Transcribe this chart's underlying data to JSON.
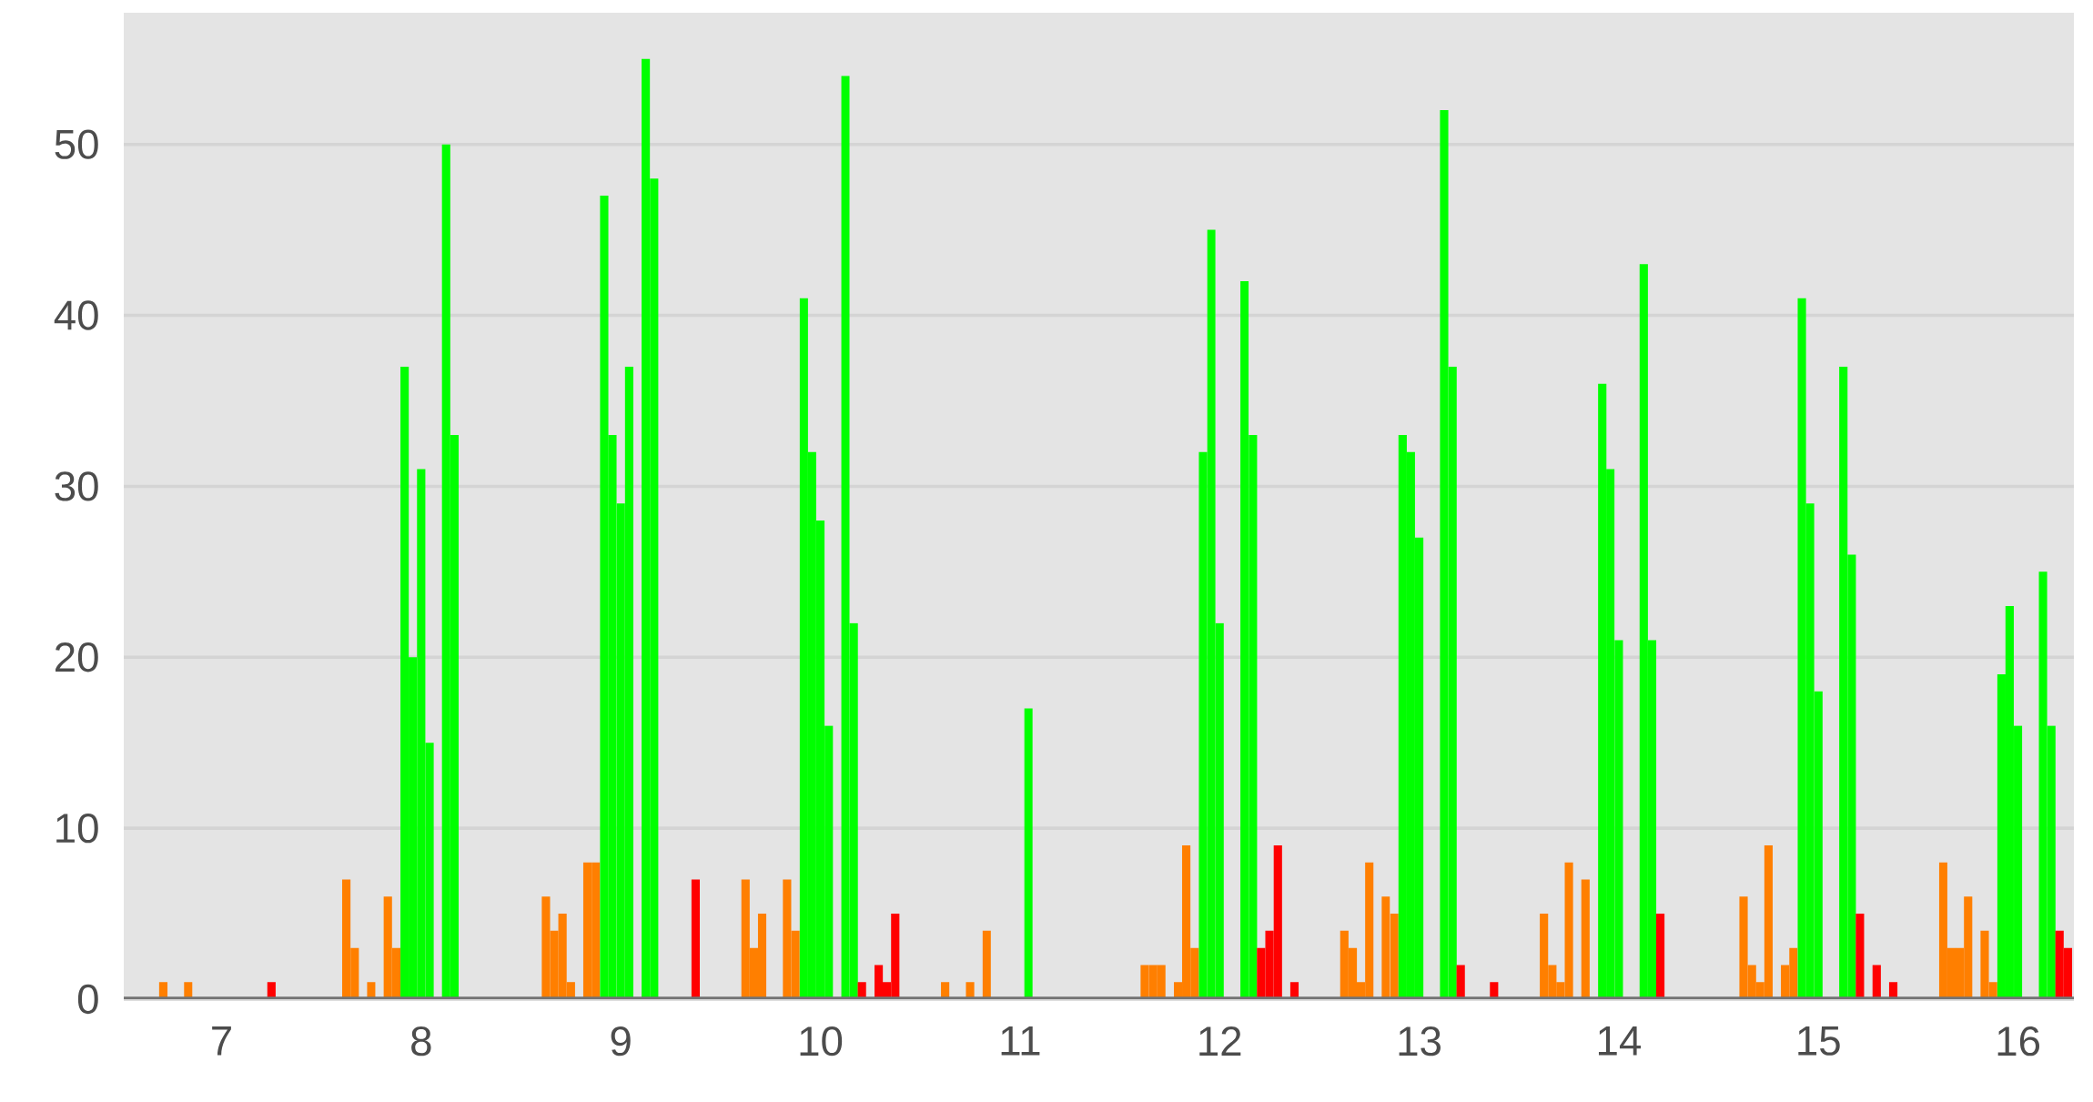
{
  "chart_data": {
    "type": "bar",
    "xlim": [
      6.51,
      16.28
    ],
    "ylim": [
      0,
      57.7
    ],
    "xticks": [
      7,
      8,
      9,
      10,
      11,
      12,
      13,
      14,
      15,
      16
    ],
    "yticks": [
      0,
      10,
      20,
      30,
      40,
      50
    ],
    "grid": "y",
    "x": [
      6.708,
      6.833,
      7.25,
      7.625,
      7.667,
      7.75,
      7.833,
      7.875,
      7.917,
      7.958,
      8.0,
      8.042,
      8.125,
      8.167,
      8.625,
      8.667,
      8.708,
      8.75,
      8.833,
      8.875,
      8.917,
      8.958,
      9.0,
      9.042,
      9.125,
      9.167,
      9.375,
      9.625,
      9.667,
      9.708,
      9.833,
      9.875,
      9.917,
      9.958,
      10.0,
      10.042,
      10.125,
      10.167,
      10.208,
      10.292,
      10.333,
      10.375,
      10.625,
      10.75,
      10.833,
      11.042,
      11.625,
      11.667,
      11.708,
      11.792,
      11.833,
      11.875,
      11.917,
      11.958,
      12.0,
      12.125,
      12.167,
      12.208,
      12.25,
      12.292,
      12.375,
      12.625,
      12.667,
      12.708,
      12.75,
      12.833,
      12.875,
      12.917,
      12.958,
      13.0,
      13.125,
      13.167,
      13.208,
      13.375,
      13.625,
      13.667,
      13.708,
      13.75,
      13.833,
      13.917,
      13.958,
      14.0,
      14.125,
      14.167,
      14.208,
      14.625,
      14.667,
      14.708,
      14.75,
      14.833,
      14.875,
      14.917,
      14.958,
      15.0,
      15.125,
      15.167,
      15.208,
      15.292,
      15.375,
      15.625,
      15.667,
      15.708,
      15.75,
      15.833,
      15.875,
      15.917,
      15.958,
      16.0,
      16.125,
      16.167,
      16.208,
      16.25
    ],
    "values": [
      1,
      1,
      1,
      7,
      3,
      1,
      6,
      3,
      37,
      20,
      31,
      15,
      50,
      33,
      6,
      4,
      5,
      1,
      8,
      8,
      47,
      33,
      29,
      37,
      55,
      48,
      7,
      7,
      3,
      5,
      7,
      4,
      41,
      32,
      28,
      16,
      54,
      22,
      1,
      2,
      1,
      5,
      1,
      1,
      4,
      17,
      2,
      2,
      2,
      1,
      9,
      3,
      32,
      45,
      22,
      42,
      33,
      3,
      4,
      9,
      1,
      4,
      3,
      1,
      8,
      6,
      5,
      33,
      32,
      27,
      52,
      37,
      2,
      1,
      5,
      2,
      1,
      8,
      7,
      36,
      31,
      21,
      43,
      21,
      5,
      6,
      2,
      1,
      9,
      2,
      3,
      41,
      29,
      18,
      37,
      26,
      5,
      2,
      1,
      8,
      3,
      3,
      6,
      4,
      1,
      19,
      23,
      16,
      25,
      16,
      4,
      3
    ],
    "colors": [
      "#ff7f00",
      "#ff7f00",
      "#ff0000",
      "#ff7f00",
      "#ff7f00",
      "#ff7f00",
      "#ff7f00",
      "#ff7f00",
      "#00ff00",
      "#00ff00",
      "#00ff00",
      "#00ff00",
      "#00ff00",
      "#00ff00",
      "#ff7f00",
      "#ff7f00",
      "#ff7f00",
      "#ff7f00",
      "#ff7f00",
      "#ff7f00",
      "#00ff00",
      "#00ff00",
      "#00ff00",
      "#00ff00",
      "#00ff00",
      "#00ff00",
      "#ff0000",
      "#ff7f00",
      "#ff7f00",
      "#ff7f00",
      "#ff7f00",
      "#ff7f00",
      "#00ff00",
      "#00ff00",
      "#00ff00",
      "#00ff00",
      "#00ff00",
      "#00ff00",
      "#ff0000",
      "#ff0000",
      "#ff0000",
      "#ff0000",
      "#ff7f00",
      "#ff7f00",
      "#ff7f00",
      "#00ff00",
      "#ff7f00",
      "#ff7f00",
      "#ff7f00",
      "#ff7f00",
      "#ff7f00",
      "#ff7f00",
      "#00ff00",
      "#00ff00",
      "#00ff00",
      "#00ff00",
      "#00ff00",
      "#ff0000",
      "#ff0000",
      "#ff0000",
      "#ff0000",
      "#ff7f00",
      "#ff7f00",
      "#ff7f00",
      "#ff7f00",
      "#ff7f00",
      "#ff7f00",
      "#00ff00",
      "#00ff00",
      "#00ff00",
      "#00ff00",
      "#00ff00",
      "#ff0000",
      "#ff0000",
      "#ff7f00",
      "#ff7f00",
      "#ff7f00",
      "#ff7f00",
      "#ff7f00",
      "#00ff00",
      "#00ff00",
      "#00ff00",
      "#00ff00",
      "#00ff00",
      "#ff0000",
      "#ff7f00",
      "#ff7f00",
      "#ff7f00",
      "#ff7f00",
      "#ff7f00",
      "#ff7f00",
      "#00ff00",
      "#00ff00",
      "#00ff00",
      "#00ff00",
      "#00ff00",
      "#ff0000",
      "#ff0000",
      "#ff0000",
      "#ff7f00",
      "#ff7f00",
      "#ff7f00",
      "#ff7f00",
      "#ff7f00",
      "#ff7f00",
      "#00ff00",
      "#00ff00",
      "#00ff00",
      "#00ff00",
      "#00ff00",
      "#ff0000",
      "#ff0000"
    ]
  }
}
